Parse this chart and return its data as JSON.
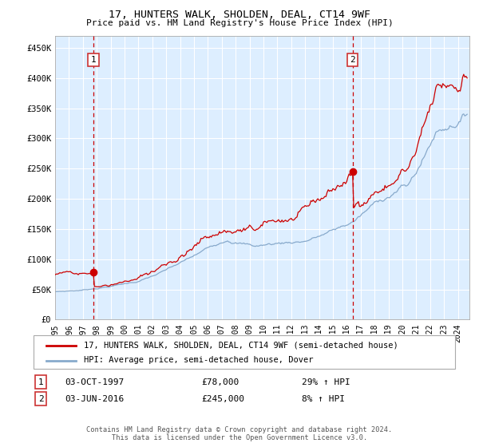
{
  "title": "17, HUNTERS WALK, SHOLDEN, DEAL, CT14 9WF",
  "subtitle": "Price paid vs. HM Land Registry's House Price Index (HPI)",
  "yticks": [
    0,
    50000,
    100000,
    150000,
    200000,
    250000,
    300000,
    350000,
    400000,
    450000
  ],
  "ytick_labels": [
    "£0",
    "£50K",
    "£100K",
    "£150K",
    "£200K",
    "£250K",
    "£300K",
    "£350K",
    "£400K",
    "£450K"
  ],
  "xlim_start": 1995.0,
  "xlim_end": 2024.83,
  "ylim_min": 0,
  "ylim_max": 470000,
  "marker1_x": 1997.75,
  "marker1_y": 78000,
  "marker2_x": 2016.42,
  "marker2_y": 245000,
  "marker1_label": "1",
  "marker2_label": "2",
  "marker1_date": "03-OCT-1997",
  "marker1_price": "£78,000",
  "marker1_hpi": "29% ↑ HPI",
  "marker2_date": "03-JUN-2016",
  "marker2_price": "£245,000",
  "marker2_hpi": "8% ↑ HPI",
  "line1_color": "#cc0000",
  "line2_color": "#88aacc",
  "line1_label": "17, HUNTERS WALK, SHOLDEN, DEAL, CT14 9WF (semi-detached house)",
  "line2_label": "HPI: Average price, semi-detached house, Dover",
  "bg_color": "#ddeeff",
  "grid_color": "#ffffff",
  "vline_color": "#cc0000",
  "box_color": "#cc3333",
  "footer": "Contains HM Land Registry data © Crown copyright and database right 2024.\nThis data is licensed under the Open Government Licence v3.0.",
  "xtick_years": [
    1995,
    1996,
    1997,
    1998,
    1999,
    2000,
    2001,
    2002,
    2003,
    2004,
    2005,
    2006,
    2007,
    2008,
    2009,
    2010,
    2011,
    2012,
    2013,
    2014,
    2015,
    2016,
    2017,
    2018,
    2019,
    2020,
    2021,
    2022,
    2023,
    2024
  ]
}
